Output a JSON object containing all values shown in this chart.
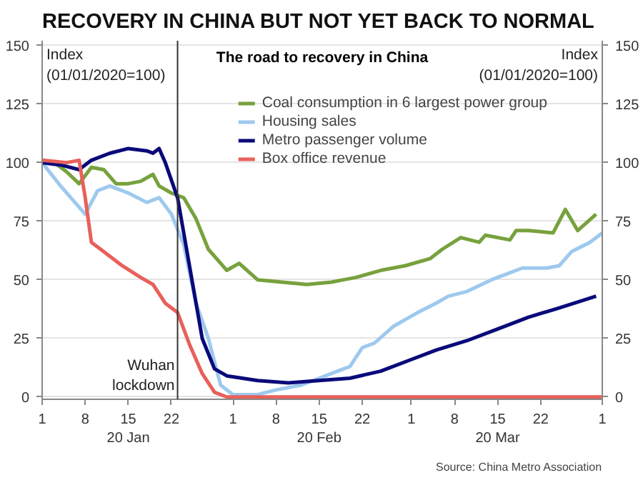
{
  "chart_data": {
    "type": "line",
    "title": "RECOVERY IN CHINA BUT NOT YET BACK TO NORMAL",
    "subtitle": "The road to recovery in China",
    "ylabel": "Index\n(01/01/2020=100)",
    "y2label": "Index\n(01/01/2020=100)",
    "annotations": [
      "Source: China Metro Association"
    ],
    "series": [
      {
        "name": "Coal consumption in 6 largest power group",
        "color": "#77a13d",
        "x": [
          "2020-01-01",
          "2020-01-03",
          "2020-01-05",
          "2020-01-07",
          "2020-01-09",
          "2020-01-11",
          "2020-01-13",
          "2020-01-15",
          "2020-01-17",
          "2020-01-19",
          "2020-01-20",
          "2020-01-22",
          "2020-01-24",
          "2020-01-26",
          "2020-01-28",
          "2020-01-30",
          "2020-01-31",
          "2020-02-02",
          "2020-02-05",
          "2020-02-09",
          "2020-02-13",
          "2020-02-17",
          "2020-02-19",
          "2020-02-21",
          "2020-02-25",
          "2020-02-29",
          "2020-03-04",
          "2020-03-06",
          "2020-03-09",
          "2020-03-12",
          "2020-03-13",
          "2020-03-17",
          "2020-03-18",
          "2020-03-20",
          "2020-03-24",
          "2020-03-26",
          "2020-03-28",
          "2020-03-31"
        ],
        "values": [
          100,
          100,
          96,
          91,
          98,
          97,
          91,
          91,
          92,
          95,
          90,
          87,
          85,
          76,
          63,
          57,
          54,
          57,
          50,
          49,
          48,
          49,
          50,
          51,
          54,
          56,
          59,
          63,
          68,
          66,
          69,
          67,
          71,
          71,
          70,
          80,
          71,
          78
        ]
      },
      {
        "name": "Housing sales",
        "color": "#9ec9ee",
        "x": [
          "2020-01-01",
          "2020-01-04",
          "2020-01-06",
          "2020-01-08",
          "2020-01-10",
          "2020-01-12",
          "2020-01-15",
          "2020-01-18",
          "2020-01-20",
          "2020-01-22",
          "2020-01-24",
          "2020-01-26",
          "2020-01-28",
          "2020-01-30",
          "2020-02-01",
          "2020-02-05",
          "2020-02-08",
          "2020-02-12",
          "2020-02-15",
          "2020-02-18",
          "2020-02-20",
          "2020-02-22",
          "2020-02-24",
          "2020-02-27",
          "2020-02-29",
          "2020-03-02",
          "2020-03-05",
          "2020-03-07",
          "2020-03-10",
          "2020-03-14",
          "2020-03-17",
          "2020-03-19",
          "2020-03-23",
          "2020-03-25",
          "2020-03-27",
          "2020-03-30",
          "2020-04-01"
        ],
        "values": [
          100,
          90,
          84,
          78,
          88,
          90,
          87,
          83,
          85,
          78,
          65,
          40,
          25,
          5,
          1,
          1,
          3,
          5,
          8,
          11,
          13,
          21,
          23,
          30,
          33,
          36,
          40,
          43,
          45,
          50,
          53,
          55,
          55,
          56,
          62,
          66,
          70
        ]
      },
      {
        "name": "Metro passenger volume",
        "color": "#0a0a7a",
        "x": [
          "2020-01-01",
          "2020-01-04",
          "2020-01-07",
          "2020-01-09",
          "2020-01-12",
          "2020-01-15",
          "2020-01-18",
          "2020-01-19",
          "2020-01-20",
          "2020-01-21",
          "2020-01-23",
          "2020-01-25",
          "2020-01-27",
          "2020-01-29",
          "2020-01-31",
          "2020-02-05",
          "2020-02-10",
          "2020-02-15",
          "2020-02-20",
          "2020-02-25",
          "2020-03-01",
          "2020-03-05",
          "2020-03-10",
          "2020-03-15",
          "2020-03-20",
          "2020-03-25",
          "2020-03-31"
        ],
        "values": [
          100,
          99,
          97,
          101,
          104,
          106,
          105,
          104,
          106,
          100,
          85,
          55,
          25,
          12,
          9,
          7,
          6,
          7,
          8,
          11,
          16,
          20,
          24,
          29,
          34,
          38,
          43
        ]
      },
      {
        "name": "Box office revenue",
        "color": "#e8605a",
        "x": [
          "2020-01-01",
          "2020-01-05",
          "2020-01-07",
          "2020-01-08",
          "2020-01-09",
          "2020-01-11",
          "2020-01-14",
          "2020-01-17",
          "2020-01-19",
          "2020-01-21",
          "2020-01-23",
          "2020-01-25",
          "2020-01-27",
          "2020-01-29",
          "2020-01-31",
          "2020-02-15",
          "2020-03-01",
          "2020-03-15",
          "2020-04-01"
        ],
        "values": [
          101,
          100,
          101,
          85,
          66,
          62,
          56,
          51,
          48,
          40,
          36,
          22,
          10,
          2,
          0,
          0,
          0,
          0,
          0
        ]
      }
    ],
    "xlim": [
      "2020-01-01",
      "2020-04-01"
    ],
    "xticks": [
      {
        "value": "2020-01-01",
        "label": "1"
      },
      {
        "value": "2020-01-08",
        "label": "8"
      },
      {
        "value": "2020-01-15",
        "label": "15\n20 Jan"
      },
      {
        "value": "2020-01-22",
        "label": "22"
      },
      {
        "value": "2020-02-01",
        "label": "1"
      },
      {
        "value": "2020-02-08",
        "label": "8"
      },
      {
        "value": "2020-02-15",
        "label": "15\n20 Feb"
      },
      {
        "value": "2020-02-22",
        "label": "22"
      },
      {
        "value": "2020-03-01",
        "label": "1"
      },
      {
        "value": "2020-03-08",
        "label": "8"
      },
      {
        "value": "2020-03-15",
        "label": "15\n20 Mar"
      },
      {
        "value": "2020-03-22",
        "label": "22"
      },
      {
        "value": "2020-04-01",
        "label": "1"
      }
    ],
    "ylim": [
      -1,
      152
    ],
    "yticks": [
      0,
      25,
      50,
      75,
      100,
      125,
      150
    ],
    "y2lim": [
      -1,
      152
    ],
    "y2ticks": [
      0,
      25,
      50,
      75,
      100,
      125,
      150
    ],
    "ref_lines": [
      {
        "axis": "x",
        "value": "2020-01-23",
        "label": "Wuhan\nlockdown",
        "color": "#333333"
      }
    ],
    "grid": "y",
    "legend": "top right",
    "line_style": "solid",
    "marker": "none"
  }
}
